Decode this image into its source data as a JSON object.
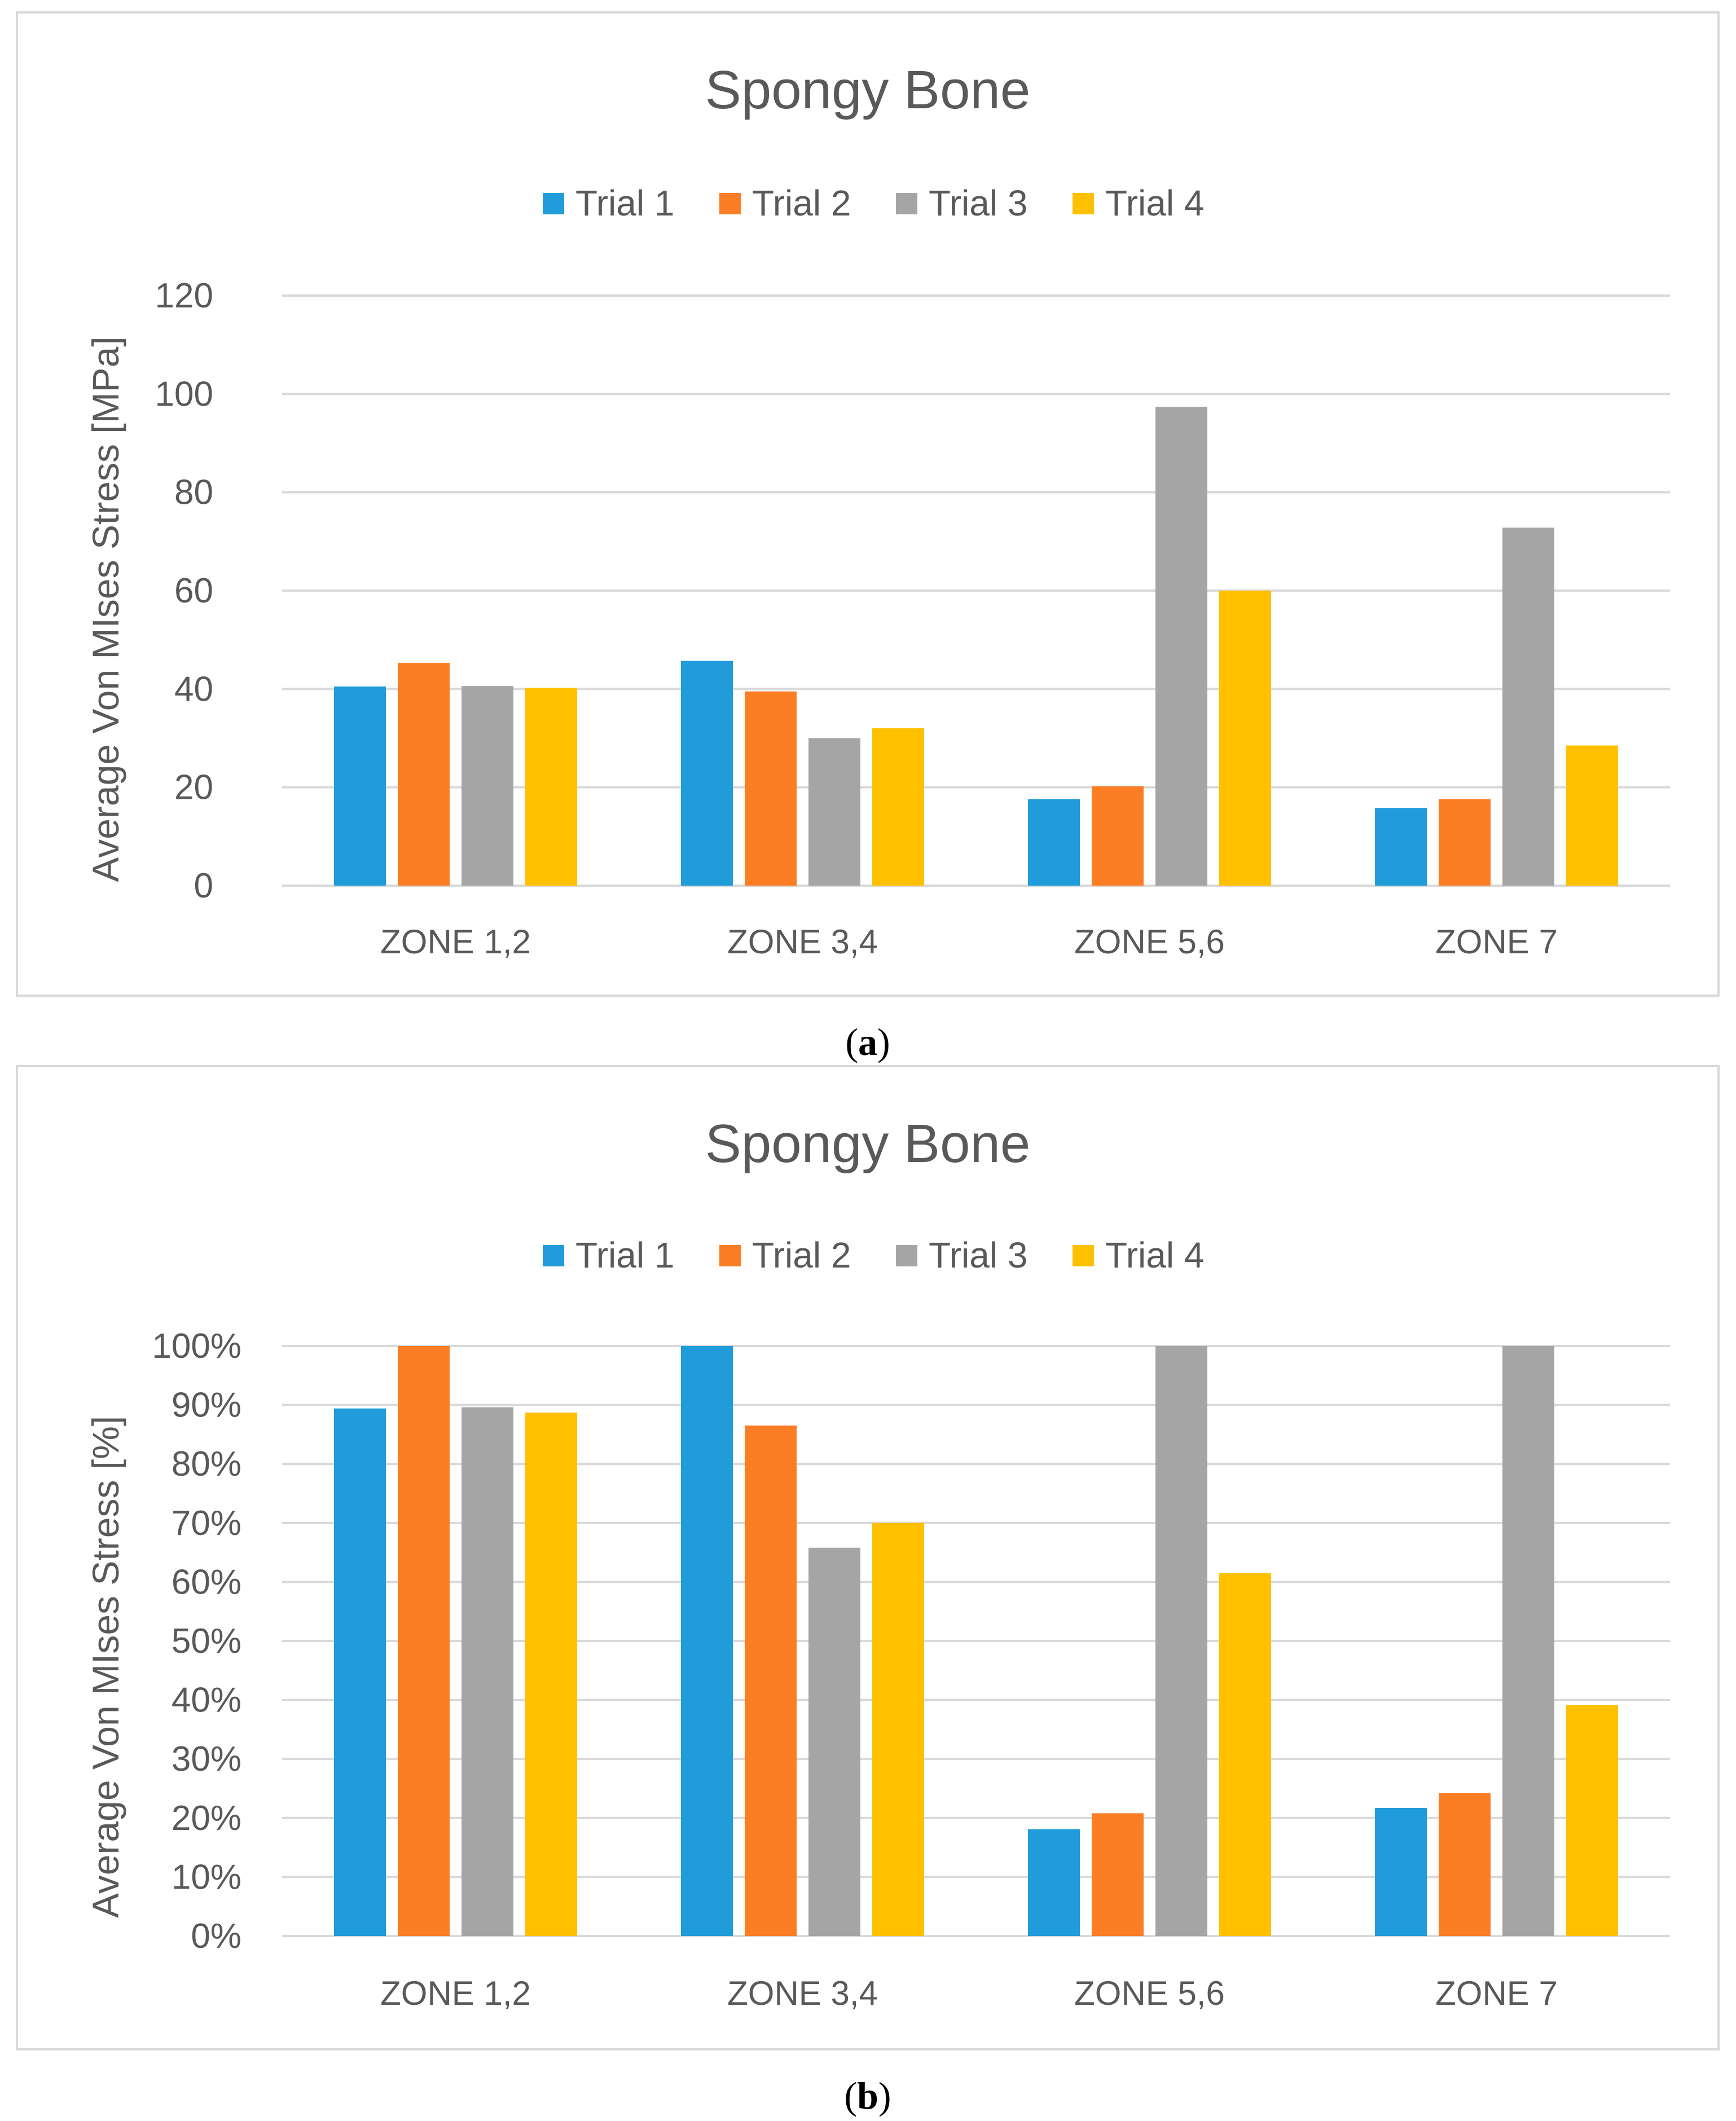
{
  "colors": {
    "trial1": "#1f9cd9",
    "trial2": "#fb7d24",
    "trial3": "#a5a5a5",
    "trial4": "#ffc000"
  },
  "chart_data": [
    {
      "type": "bar",
      "panel": "a",
      "title": "Spongy Bone",
      "ylabel": "Average Von MIses Stress [MPa]",
      "xlabel": "",
      "categories": [
        "ZONE 1,2",
        "ZONE 3,4",
        "ZONE 5,6",
        "ZONE 7"
      ],
      "ylim": [
        0,
        120
      ],
      "yticks": [
        "0",
        "20",
        "40",
        "60",
        "80",
        "100",
        "120"
      ],
      "ytick_values": [
        0,
        20,
        40,
        60,
        80,
        100,
        120
      ],
      "grid": true,
      "legend_position": "top",
      "series": [
        {
          "name": "Trial 1",
          "values": [
            40.5,
            45.7,
            17.6,
            15.8
          ]
        },
        {
          "name": "Trial 2",
          "values": [
            45.3,
            39.5,
            20.2,
            17.6
          ]
        },
        {
          "name": "Trial 3",
          "values": [
            40.6,
            30.0,
            97.4,
            72.8
          ]
        },
        {
          "name": "Trial 4",
          "values": [
            40.2,
            32.0,
            60.0,
            28.5
          ]
        }
      ],
      "caption_open": "(",
      "caption_letter": "a",
      "caption_close": ")"
    },
    {
      "type": "bar",
      "panel": "b",
      "title": "Spongy Bone",
      "ylabel": "Average Von MIses Stress [%]",
      "xlabel": "",
      "categories": [
        "ZONE 1,2",
        "ZONE 3,4",
        "ZONE 5,6",
        "ZONE 7"
      ],
      "ylim": [
        0,
        100
      ],
      "yticks": [
        "0%",
        "10%",
        "20%",
        "30%",
        "40%",
        "50%",
        "60%",
        "70%",
        "80%",
        "90%",
        "100%"
      ],
      "ytick_values": [
        0,
        10,
        20,
        30,
        40,
        50,
        60,
        70,
        80,
        90,
        100
      ],
      "grid": true,
      "legend_position": "top",
      "series": [
        {
          "name": "Trial 1",
          "values": [
            89.4,
            100,
            18.1,
            21.7
          ]
        },
        {
          "name": "Trial 2",
          "values": [
            100,
            86.5,
            20.8,
            24.2
          ]
        },
        {
          "name": "Trial 3",
          "values": [
            89.6,
            65.8,
            100,
            100
          ]
        },
        {
          "name": "Trial 4",
          "values": [
            88.7,
            70.0,
            61.5,
            39.1
          ]
        }
      ],
      "caption_open": "(",
      "caption_letter": "b",
      "caption_close": ")"
    }
  ]
}
